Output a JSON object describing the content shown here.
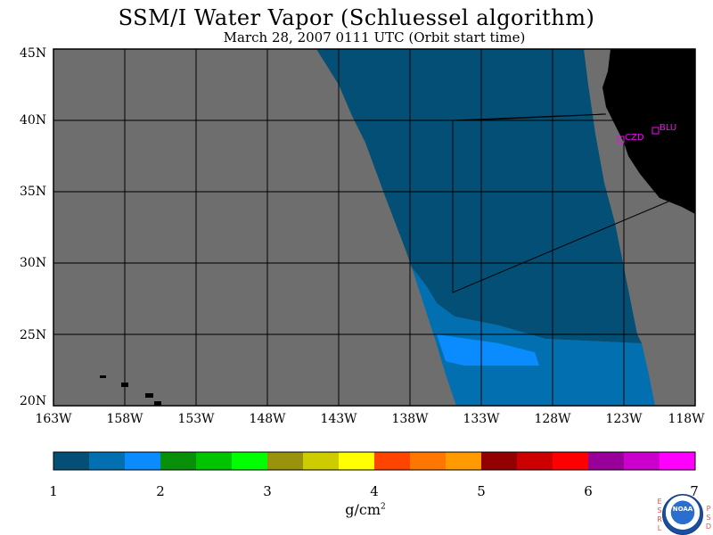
{
  "title": "SSM/I Water Vapor (Schluessel algorithm)",
  "subtitle": "March 28, 2007  0111 UTC  (Orbit start time)",
  "lat_labels": [
    "45N",
    "40N",
    "35N",
    "30N",
    "25N",
    "20N"
  ],
  "lon_labels": [
    "163W",
    "158W",
    "153W",
    "148W",
    "143W",
    "138W",
    "133W",
    "128W",
    "123W",
    "118W"
  ],
  "stations": [
    {
      "label": "CZD"
    },
    {
      "label": "BLU"
    }
  ],
  "colorbar": {
    "tick_labels": [
      "1",
      "2",
      "3",
      "4",
      "5",
      "6",
      "7"
    ],
    "unit": "g/cm",
    "unit_exp": "2",
    "colors": [
      "#034f75",
      "#026fb0",
      "#0a8cff",
      "#089008",
      "#00c400",
      "#00ff00",
      "#99920c",
      "#cccc00",
      "#ffff00",
      "#ff4400",
      "#ff7700",
      "#ff9b00",
      "#920000",
      "#cc0000",
      "#ff0000",
      "#990099",
      "#cc00cc",
      "#ff00ff"
    ]
  },
  "colors": {
    "land_no_data": "#6e6e6e",
    "continent": "#000000",
    "vapor_low": "#034f75",
    "vapor_mid": "#026fb0",
    "vapor_high": "#0a8cff",
    "station_marker": "#ff00ff"
  },
  "logo": {
    "left_letters": "ESRL",
    "right_letters": "PSD",
    "badge": "NOAA"
  }
}
